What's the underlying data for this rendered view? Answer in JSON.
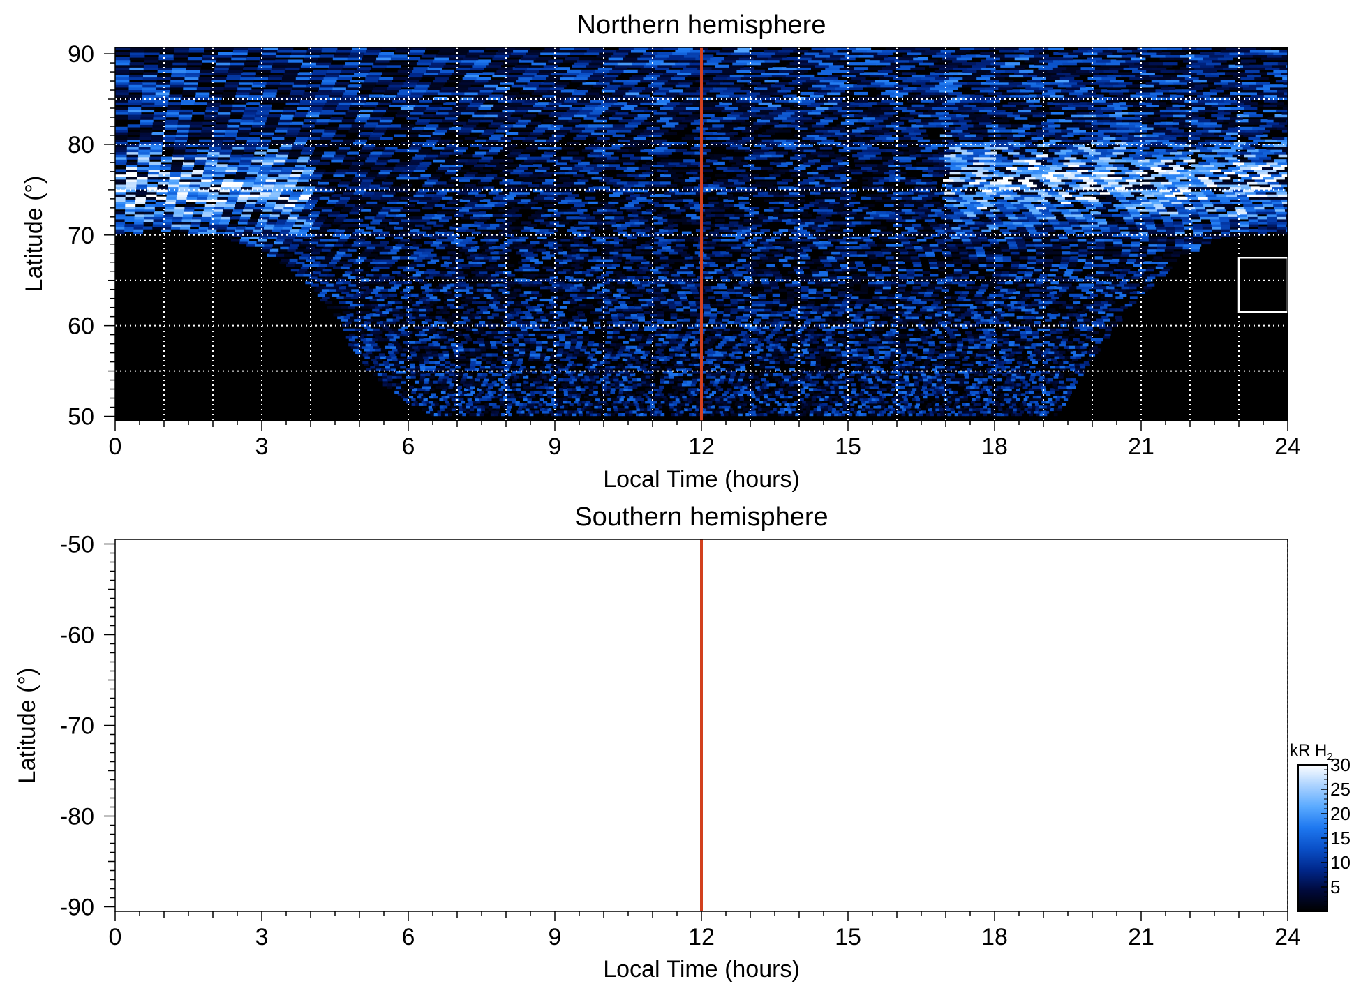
{
  "chart_data": [
    {
      "type": "heatmap",
      "title": "Northern hemisphere",
      "xlabel": "Local Time (hours)",
      "ylabel": "Latitude (°)",
      "xlim": [
        0,
        24
      ],
      "ylim": [
        49.5,
        90.7
      ],
      "xticks": [
        0,
        3,
        6,
        9,
        12,
        15,
        18,
        21,
        24
      ],
      "yticks": [
        50,
        60,
        70,
        80,
        90
      ],
      "grid": true,
      "grid_x": [
        1,
        2,
        3,
        4,
        5,
        6,
        7,
        8,
        9,
        10,
        11,
        13,
        14,
        15,
        16,
        17,
        18,
        19,
        20,
        21,
        22,
        23
      ],
      "grid_y": [
        55,
        60,
        65,
        70,
        75,
        80,
        85
      ],
      "background": "#000000",
      "data_description": "auroral H2 emission intensity, kR",
      "coverage_lower_bound_lat": [
        [
          0,
          69.5
        ],
        [
          0.3,
          70.1
        ],
        [
          1,
          70.5
        ],
        [
          2,
          70.0
        ],
        [
          3,
          68.5
        ],
        [
          4,
          64.5
        ],
        [
          4.6,
          60.0
        ],
        [
          5,
          56.0
        ],
        [
          5.6,
          53.0
        ],
        [
          6,
          51.5
        ],
        [
          6.5,
          50.0
        ],
        [
          19.3,
          50.0
        ],
        [
          19.7,
          54.0
        ],
        [
          20.2,
          58.0
        ],
        [
          20.6,
          61.0
        ],
        [
          21.0,
          63.5
        ],
        [
          21.5,
          66.0
        ],
        [
          22.0,
          68.0
        ],
        [
          22.5,
          69.5
        ],
        [
          23.0,
          70.0
        ],
        [
          24,
          70.0
        ]
      ],
      "bright_band": [
        {
          "from_lt": 0,
          "to_lt": 4,
          "lat": 75
        },
        {
          "from_lt": 17,
          "to_lt": 24,
          "lat": 76
        }
      ],
      "marker_line": {
        "x": 12,
        "color": "#d2401e"
      },
      "inset_box": {
        "x0": 23.0,
        "x1": 24.0,
        "y0": 61.5,
        "y1": 67.5,
        "color": "#ffffff"
      }
    },
    {
      "type": "heatmap",
      "title": "Southern hemisphere",
      "xlabel": "Local Time (hours)",
      "ylabel": "Latitude (°)",
      "xlim": [
        0,
        24
      ],
      "ylim": [
        -90.5,
        -49.5
      ],
      "xticks": [
        0,
        3,
        6,
        9,
        12,
        15,
        18,
        21,
        24
      ],
      "yticks": [
        -50,
        -60,
        -70,
        -80,
        -90
      ],
      "grid": false,
      "background": "#ffffff",
      "marker_line": {
        "x": 12,
        "color": "#d2401e"
      }
    }
  ],
  "colorbar": {
    "label": "kR H",
    "label_subscript": "2",
    "range": [
      0,
      30
    ],
    "ticks": [
      5,
      10,
      15,
      20,
      25,
      30
    ],
    "colors": [
      "#000000",
      "#000a3c",
      "#00288c",
      "#0a50c8",
      "#1e78f0",
      "#5aaaff",
      "#aad2ff",
      "#ffffff"
    ]
  },
  "colors": {
    "accent": "#d2401e",
    "grid": "#ffffff",
    "axis": "#000000"
  }
}
